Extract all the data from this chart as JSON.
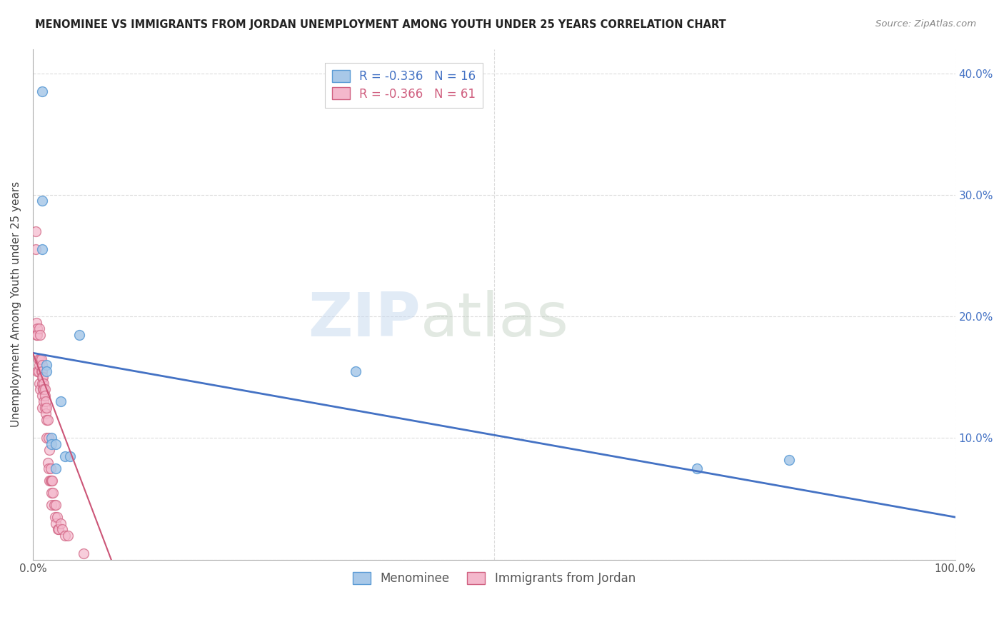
{
  "title": "MENOMINEE VS IMMIGRANTS FROM JORDAN UNEMPLOYMENT AMONG YOUTH UNDER 25 YEARS CORRELATION CHART",
  "source": "Source: ZipAtlas.com",
  "ylabel": "Unemployment Among Youth under 25 years",
  "xlim": [
    0,
    1.0
  ],
  "ylim": [
    0,
    0.42
  ],
  "xticks": [
    0.0,
    0.5,
    1.0
  ],
  "xticklabels": [
    "0.0%",
    "",
    "100.0%"
  ],
  "yticks_left": [
    0.0,
    0.1,
    0.2,
    0.3,
    0.4
  ],
  "yticks_right": [
    0.0,
    0.1,
    0.2,
    0.3,
    0.4
  ],
  "ytick_labels_right": [
    "",
    "10.0%",
    "20.0%",
    "30.0%",
    "40.0%"
  ],
  "watermark_zip": "ZIP",
  "watermark_atlas": "atlas",
  "legend_entries": [
    {
      "label": "R = -0.336   N = 16",
      "color": "#a8c8e8",
      "edgecolor": "#5b9bd5"
    },
    {
      "label": "R = -0.366   N = 61",
      "color": "#f4b8cc",
      "edgecolor": "#d06080"
    }
  ],
  "menominee_scatter": {
    "x": [
      0.01,
      0.01,
      0.01,
      0.015,
      0.015,
      0.02,
      0.02,
      0.025,
      0.025,
      0.03,
      0.035,
      0.04,
      0.05,
      0.35,
      0.72,
      0.82
    ],
    "y": [
      0.385,
      0.295,
      0.255,
      0.16,
      0.155,
      0.1,
      0.095,
      0.095,
      0.075,
      0.13,
      0.085,
      0.085,
      0.185,
      0.155,
      0.075,
      0.082
    ],
    "color": "#a8c8e8",
    "edgecolor": "#5b9bd5",
    "size": 100,
    "alpha": 0.85
  },
  "jordan_scatter": {
    "x": [
      0.003,
      0.003,
      0.004,
      0.004,
      0.005,
      0.005,
      0.005,
      0.006,
      0.006,
      0.007,
      0.007,
      0.007,
      0.008,
      0.008,
      0.008,
      0.009,
      0.009,
      0.01,
      0.01,
      0.01,
      0.01,
      0.01,
      0.01,
      0.011,
      0.011,
      0.012,
      0.012,
      0.012,
      0.013,
      0.013,
      0.013,
      0.014,
      0.014,
      0.015,
      0.015,
      0.015,
      0.016,
      0.016,
      0.017,
      0.017,
      0.018,
      0.018,
      0.019,
      0.019,
      0.02,
      0.02,
      0.02,
      0.021,
      0.022,
      0.023,
      0.024,
      0.025,
      0.025,
      0.026,
      0.027,
      0.028,
      0.03,
      0.032,
      0.035,
      0.038,
      0.055
    ],
    "y": [
      0.255,
      0.27,
      0.195,
      0.185,
      0.19,
      0.185,
      0.155,
      0.165,
      0.155,
      0.19,
      0.16,
      0.145,
      0.185,
      0.165,
      0.14,
      0.165,
      0.155,
      0.16,
      0.155,
      0.15,
      0.145,
      0.135,
      0.125,
      0.15,
      0.14,
      0.145,
      0.14,
      0.13,
      0.14,
      0.135,
      0.125,
      0.13,
      0.12,
      0.125,
      0.115,
      0.1,
      0.115,
      0.08,
      0.1,
      0.075,
      0.09,
      0.065,
      0.075,
      0.065,
      0.065,
      0.055,
      0.045,
      0.065,
      0.055,
      0.045,
      0.035,
      0.045,
      0.03,
      0.035,
      0.025,
      0.025,
      0.03,
      0.025,
      0.02,
      0.02,
      0.005
    ],
    "color": "#f4b8cc",
    "edgecolor": "#d06080",
    "size": 100,
    "alpha": 0.7
  },
  "blue_trendline": {
    "x": [
      0.0,
      1.0
    ],
    "y": [
      0.17,
      0.035
    ],
    "color": "#4472c4",
    "linewidth": 2.0
  },
  "pink_trendline": {
    "x": [
      0.0,
      0.085
    ],
    "y": [
      0.17,
      0.0
    ],
    "color": "#cc5577",
    "linewidth": 1.5,
    "linestyle": "-"
  },
  "background_color": "#ffffff",
  "grid_color": "#bbbbbb",
  "grid_linestyle": "--",
  "grid_alpha": 0.5
}
